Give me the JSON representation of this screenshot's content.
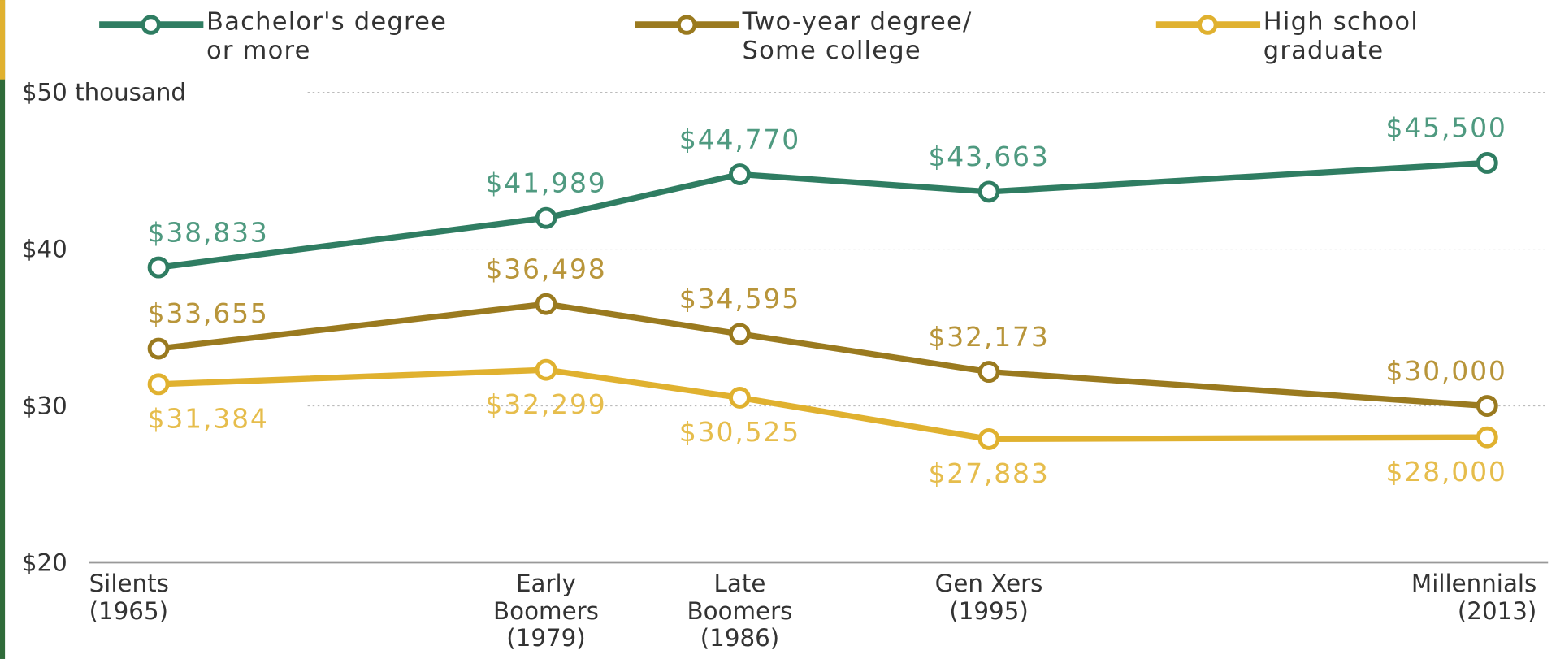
{
  "chart_data": {
    "type": "line",
    "x": [
      1965,
      1979,
      1986,
      1995,
      2013
    ],
    "xlim": [
      1962.5,
      2015.2
    ],
    "xticks": [
      {
        "value": 1965,
        "label": "Silents\n(1965)"
      },
      {
        "value": 1979,
        "label": "Early\nBoomers\n(1979)"
      },
      {
        "value": 1986,
        "label": "Late\nBoomers\n(1986)"
      },
      {
        "value": 1995,
        "label": "Gen Xers\n(1995)"
      },
      {
        "value": 2013,
        "label": "Millennials\n(2013)"
      }
    ],
    "ylim": [
      20,
      50
    ],
    "yticks": [
      {
        "value": 20,
        "label": "$20"
      },
      {
        "value": 30,
        "label": "$30"
      },
      {
        "value": 40,
        "label": "$40"
      },
      {
        "value": 50,
        "label": "$50 thousand"
      }
    ],
    "grid": true,
    "legend": "top",
    "series": [
      {
        "name": "Bachelor's degree\nor more",
        "color": "#2f7d62",
        "label_color": "#4f9a80",
        "label_position": "above",
        "values": [
          38.833,
          41.989,
          44.77,
          43.663,
          45.5
        ],
        "value_labels": [
          "$38,833",
          "$41,989",
          "$44,770",
          "$43,663",
          "$45,500"
        ]
      },
      {
        "name": "Two-year degree/\nSome college",
        "color": "#9a7a1f",
        "label_color": "#b8953a",
        "label_position": "above",
        "values": [
          33.655,
          36.498,
          34.595,
          32.173,
          30.0
        ],
        "value_labels": [
          "$33,655",
          "$36,498",
          "$34,595",
          "$32,173",
          "$30,000"
        ]
      },
      {
        "name": "High school\ngraduate",
        "color": "#e0b12f",
        "label_color": "#e6bd4c",
        "label_position": "below",
        "values": [
          31.384,
          32.299,
          30.525,
          27.883,
          28.0
        ],
        "value_labels": [
          "$31,384",
          "$32,299",
          "$30,525",
          "$27,883",
          "$28,000"
        ]
      }
    ]
  }
}
